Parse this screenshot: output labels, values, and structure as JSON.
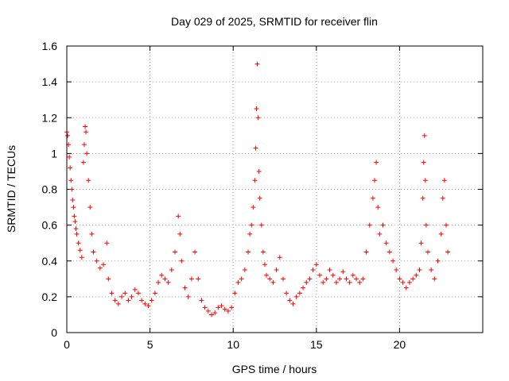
{
  "chart_data": {
    "type": "scatter",
    "title": "Day 029 of 2025, SRMTID for receiver flin",
    "xlabel": "GPS time / hours",
    "ylabel": "SRMTID / TECUs",
    "xlim": [
      0,
      25
    ],
    "ylim": [
      0,
      1.6
    ],
    "xticks": [
      0,
      5,
      10,
      15,
      20
    ],
    "xtick_labels": [
      "0",
      "5",
      "10",
      "15",
      "20"
    ],
    "yticks": [
      0,
      0.2,
      0.4,
      0.6,
      0.8,
      1,
      1.2,
      1.4,
      1.6
    ],
    "ytick_labels": [
      "0",
      "0.2",
      "0.4",
      "0.6",
      "0.8",
      "1",
      "1.2",
      "1.4",
      "1.6"
    ],
    "grid": true,
    "marker": "+",
    "color": "#ff0000",
    "series": [
      {
        "name": "SRMTID",
        "points": [
          [
            0.0,
            1.12
          ],
          [
            0.05,
            1.1
          ],
          [
            0.1,
            1.05
          ],
          [
            0.15,
            0.98
          ],
          [
            0.2,
            0.92
          ],
          [
            0.25,
            0.85
          ],
          [
            0.3,
            0.8
          ],
          [
            0.35,
            0.74
          ],
          [
            0.4,
            0.7
          ],
          [
            0.45,
            0.65
          ],
          [
            0.5,
            0.62
          ],
          [
            0.55,
            0.58
          ],
          [
            0.6,
            0.55
          ],
          [
            0.7,
            0.5
          ],
          [
            0.8,
            0.46
          ],
          [
            0.9,
            0.42
          ],
          [
            1.0,
            0.95
          ],
          [
            1.05,
            1.05
          ],
          [
            1.1,
            1.15
          ],
          [
            1.15,
            1.12
          ],
          [
            1.2,
            1.0
          ],
          [
            1.3,
            0.85
          ],
          [
            1.4,
            0.7
          ],
          [
            1.5,
            0.55
          ],
          [
            1.6,
            0.45
          ],
          [
            1.8,
            0.4
          ],
          [
            2.0,
            0.36
          ],
          [
            2.2,
            0.38
          ],
          [
            2.4,
            0.5
          ],
          [
            2.5,
            0.3
          ],
          [
            2.7,
            0.22
          ],
          [
            2.9,
            0.18
          ],
          [
            3.1,
            0.16
          ],
          [
            3.3,
            0.2
          ],
          [
            3.5,
            0.22
          ],
          [
            3.7,
            0.18
          ],
          [
            3.9,
            0.2
          ],
          [
            4.1,
            0.24
          ],
          [
            4.3,
            0.22
          ],
          [
            4.5,
            0.18
          ],
          [
            4.7,
            0.16
          ],
          [
            4.9,
            0.15
          ],
          [
            5.1,
            0.18
          ],
          [
            5.3,
            0.22
          ],
          [
            5.5,
            0.28
          ],
          [
            5.7,
            0.32
          ],
          [
            5.9,
            0.3
          ],
          [
            6.1,
            0.28
          ],
          [
            6.3,
            0.35
          ],
          [
            6.5,
            0.45
          ],
          [
            6.7,
            0.65
          ],
          [
            6.8,
            0.55
          ],
          [
            6.9,
            0.4
          ],
          [
            7.1,
            0.25
          ],
          [
            7.3,
            0.2
          ],
          [
            7.5,
            0.3
          ],
          [
            7.7,
            0.45
          ],
          [
            7.9,
            0.3
          ],
          [
            8.1,
            0.18
          ],
          [
            8.3,
            0.14
          ],
          [
            8.5,
            0.12
          ],
          [
            8.7,
            0.1
          ],
          [
            8.9,
            0.11
          ],
          [
            9.1,
            0.14
          ],
          [
            9.3,
            0.15
          ],
          [
            9.5,
            0.13
          ],
          [
            9.7,
            0.12
          ],
          [
            9.9,
            0.14
          ],
          [
            10.1,
            0.22
          ],
          [
            10.3,
            0.28
          ],
          [
            10.5,
            0.3
          ],
          [
            10.7,
            0.35
          ],
          [
            10.9,
            0.45
          ],
          [
            11.0,
            0.55
          ],
          [
            11.1,
            0.6
          ],
          [
            11.2,
            0.7
          ],
          [
            11.3,
            0.85
          ],
          [
            11.35,
            1.03
          ],
          [
            11.4,
            1.25
          ],
          [
            11.45,
            1.5
          ],
          [
            11.5,
            1.2
          ],
          [
            11.55,
            0.9
          ],
          [
            11.6,
            0.75
          ],
          [
            11.7,
            0.6
          ],
          [
            11.8,
            0.45
          ],
          [
            11.9,
            0.38
          ],
          [
            12.0,
            0.32
          ],
          [
            12.2,
            0.3
          ],
          [
            12.4,
            0.28
          ],
          [
            12.6,
            0.35
          ],
          [
            12.8,
            0.42
          ],
          [
            13.0,
            0.3
          ],
          [
            13.2,
            0.22
          ],
          [
            13.4,
            0.18
          ],
          [
            13.6,
            0.16
          ],
          [
            13.8,
            0.2
          ],
          [
            14.0,
            0.22
          ],
          [
            14.2,
            0.25
          ],
          [
            14.4,
            0.28
          ],
          [
            14.6,
            0.3
          ],
          [
            14.8,
            0.35
          ],
          [
            15.0,
            0.38
          ],
          [
            15.2,
            0.32
          ],
          [
            15.4,
            0.28
          ],
          [
            15.6,
            0.3
          ],
          [
            15.8,
            0.35
          ],
          [
            16.0,
            0.32
          ],
          [
            16.2,
            0.28
          ],
          [
            16.4,
            0.3
          ],
          [
            16.6,
            0.34
          ],
          [
            16.8,
            0.3
          ],
          [
            17.0,
            0.28
          ],
          [
            17.2,
            0.32
          ],
          [
            17.4,
            0.3
          ],
          [
            17.6,
            0.28
          ],
          [
            17.8,
            0.3
          ],
          [
            18.0,
            0.45
          ],
          [
            18.2,
            0.6
          ],
          [
            18.4,
            0.75
          ],
          [
            18.5,
            0.85
          ],
          [
            18.6,
            0.95
          ],
          [
            18.7,
            0.7
          ],
          [
            18.8,
            0.55
          ],
          [
            19.0,
            0.6
          ],
          [
            19.2,
            0.5
          ],
          [
            19.4,
            0.45
          ],
          [
            19.6,
            0.4
          ],
          [
            19.8,
            0.35
          ],
          [
            20.0,
            0.3
          ],
          [
            20.2,
            0.28
          ],
          [
            20.4,
            0.25
          ],
          [
            20.6,
            0.28
          ],
          [
            20.8,
            0.3
          ],
          [
            21.0,
            0.32
          ],
          [
            21.2,
            0.35
          ],
          [
            21.3,
            0.5
          ],
          [
            21.4,
            0.75
          ],
          [
            21.45,
            0.95
          ],
          [
            21.5,
            1.1
          ],
          [
            21.55,
            0.85
          ],
          [
            21.6,
            0.6
          ],
          [
            21.7,
            0.45
          ],
          [
            21.9,
            0.35
          ],
          [
            22.1,
            0.3
          ],
          [
            22.3,
            0.4
          ],
          [
            22.5,
            0.55
          ],
          [
            22.6,
            0.75
          ],
          [
            22.7,
            0.85
          ],
          [
            22.8,
            0.6
          ],
          [
            22.9,
            0.45
          ]
        ]
      }
    ]
  }
}
